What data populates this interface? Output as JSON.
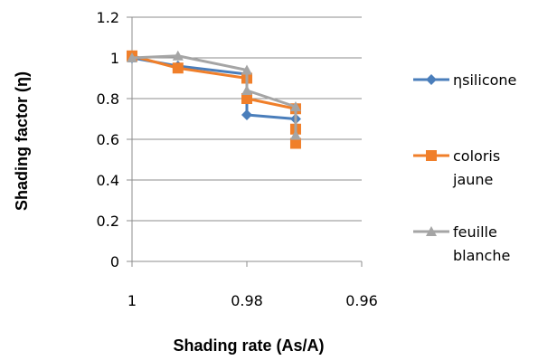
{
  "chart_data": {
    "type": "line",
    "title": "",
    "xlabel": "Shading rate (As/A)",
    "ylabel": "Shading factor (η)",
    "xlim": [
      1,
      0.96
    ],
    "ylim": [
      0,
      1.2
    ],
    "x_ticks": [
      "1",
      "0.98",
      "0.96"
    ],
    "y_ticks": [
      "0",
      "0.2",
      "0.4",
      "0.6",
      "0.8",
      "1",
      "1.2"
    ],
    "grid": "horizontal",
    "legend_position": "right",
    "series": [
      {
        "name": "ηsilicone",
        "color": "#4a7ebb",
        "marker": "diamond",
        "x": [
          1,
          0.992,
          0.98,
          0.98,
          0.98,
          0.9715,
          0.9715,
          0.9715
        ],
        "y": [
          1.0,
          0.96,
          0.92,
          0.8,
          0.72,
          0.7,
          0.65,
          0.6
        ]
      },
      {
        "name": "coloris jaune",
        "color": "#f07f2a",
        "marker": "square",
        "x": [
          1,
          0.992,
          0.98,
          0.98,
          0.9715,
          0.9715,
          0.9715
        ],
        "y": [
          1.01,
          0.95,
          0.9,
          0.8,
          0.75,
          0.65,
          0.58
        ]
      },
      {
        "name": "feuille blanche",
        "color": "#a5a5a5",
        "marker": "triangle",
        "x": [
          1,
          0.992,
          0.98,
          0.98,
          0.9715,
          0.9715
        ],
        "y": [
          1.0,
          1.01,
          0.94,
          0.84,
          0.76,
          0.62
        ]
      }
    ]
  }
}
